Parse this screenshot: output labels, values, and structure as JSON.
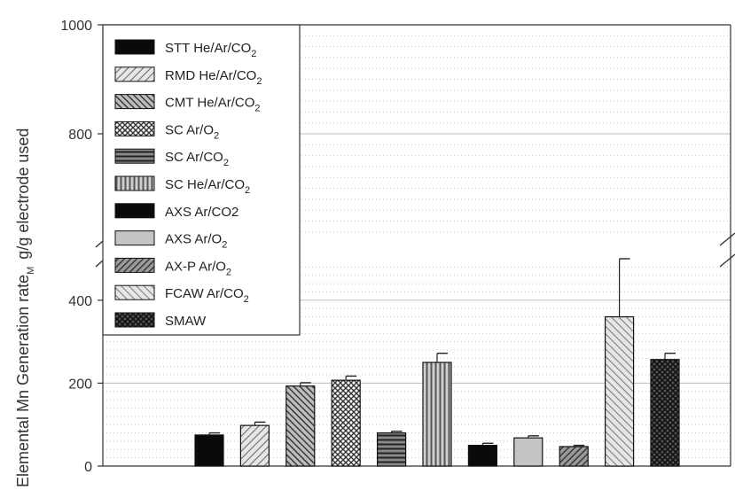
{
  "chart_data": {
    "type": "bar",
    "ylabel": "Elemental Mn Generation rate",
    "ylabel_sub": "M",
    "ylabel_unit": "g/g electrode used",
    "y_axis_break": true,
    "ylim_lower": [
      0,
      500
    ],
    "ylim_upper": [
      600,
      1000
    ],
    "yticks_lower": [
      0,
      200,
      400
    ],
    "yticks_upper": [
      800,
      1000
    ],
    "grid": true,
    "legend_position": "top-left",
    "series": [
      {
        "name": "STT He/Ar/CO2",
        "label_main": "STT He/Ar/CO",
        "label_sub": "2",
        "value": 75,
        "error": 5,
        "pattern": "solid-black"
      },
      {
        "name": "RMD He/Ar/CO2",
        "label_main": "RMD He/Ar/CO",
        "label_sub": "2",
        "value": 98,
        "error": 8,
        "pattern": "diag-light"
      },
      {
        "name": "CMT He/Ar/CO2",
        "label_main": "CMT He/Ar/CO",
        "label_sub": "2",
        "value": 193,
        "error": 8,
        "pattern": "diag-dark"
      },
      {
        "name": "SC Ar/O2",
        "label_main": "SC Ar/O",
        "label_sub": "2",
        "value": 207,
        "error": 10,
        "pattern": "crosshatch"
      },
      {
        "name": "SC Ar/CO2",
        "label_main": "SC Ar/CO",
        "label_sub": "2",
        "value": 80,
        "error": 4,
        "pattern": "horiz"
      },
      {
        "name": "SC He/Ar/CO2",
        "label_main": "SC He/Ar/CO",
        "label_sub": "2",
        "value": 250,
        "error": 22,
        "pattern": "vert"
      },
      {
        "name": "AXS Ar/CO2",
        "label_main": "AXS Ar/CO2",
        "label_sub": "",
        "value": 50,
        "error": 5,
        "pattern": "solid-black"
      },
      {
        "name": "AXS Ar/O2",
        "label_main": "AXS Ar/O",
        "label_sub": "2",
        "value": 68,
        "error": 5,
        "pattern": "solid-light"
      },
      {
        "name": "AX-P Ar/O2",
        "label_main": "AX-P Ar/O",
        "label_sub": "2",
        "value": 47,
        "error": 3,
        "pattern": "diag-dark2"
      },
      {
        "name": "FCAW Ar/CO2",
        "label_main": "FCAW Ar/CO",
        "label_sub": "2",
        "value": 360,
        "error": 140,
        "pattern": "diag-light2"
      },
      {
        "name": "SMAW",
        "label_main": "SMAW",
        "label_sub": "",
        "value": 257,
        "error": 15,
        "pattern": "crosshatch-dark"
      }
    ]
  }
}
